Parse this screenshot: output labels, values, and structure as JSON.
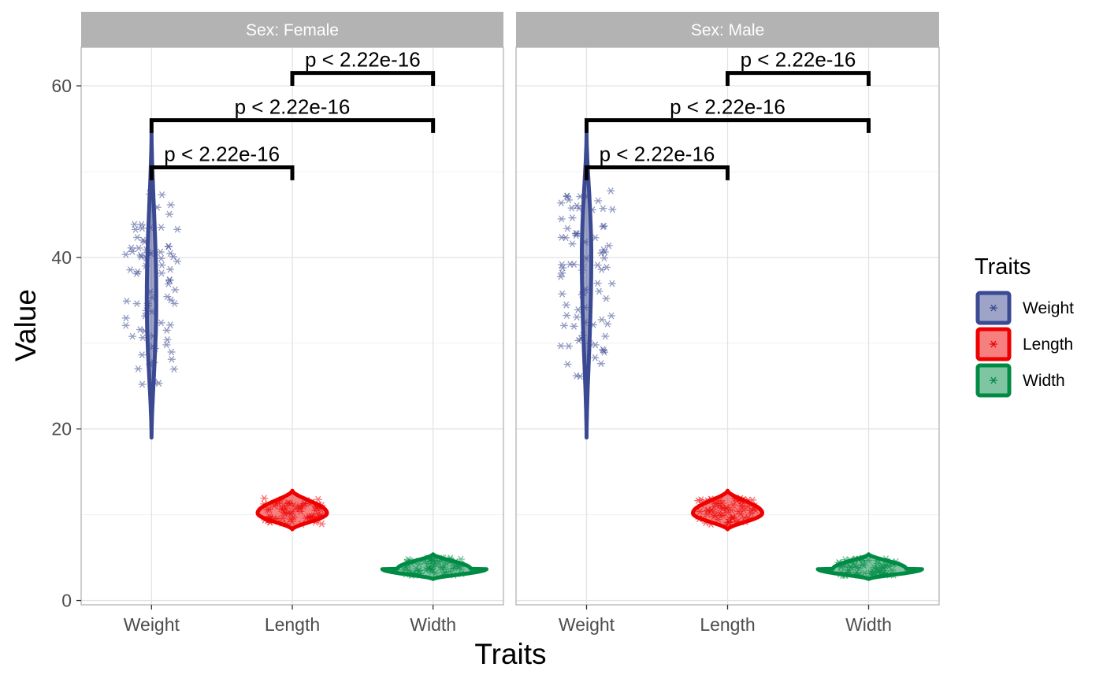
{
  "chart_data": {
    "type": "violin",
    "title": "",
    "xlabel": "Traits",
    "ylabel": "Value",
    "categories": [
      "Weight",
      "Length",
      "Width"
    ],
    "ylim": [
      -0.5,
      64.5
    ],
    "yticks": [
      0,
      20,
      40,
      60
    ],
    "grid": true,
    "legend": {
      "title": "Traits",
      "position": "right",
      "entries": [
        {
          "name": "Weight",
          "color": "#3B4992"
        },
        {
          "name": "Length",
          "color": "#EE0000"
        },
        {
          "name": "Width",
          "color": "#008B45"
        }
      ]
    },
    "panels": [
      {
        "strip": "Sex: Female",
        "violins": [
          {
            "category": "Weight",
            "min": 19,
            "max": 54.5,
            "median": 35,
            "range": [
              25,
              48
            ]
          },
          {
            "category": "Length",
            "min": 8.3,
            "max": 12.8,
            "median": 10.2,
            "range": [
              8.8,
              12.0
            ]
          },
          {
            "category": "Width",
            "min": 2.5,
            "max": 5.4,
            "median": 3.7,
            "range": [
              2.9,
              5.0
            ]
          }
        ],
        "comparisons": [
          {
            "from": "Length",
            "to": "Width",
            "y": 61.5,
            "label": "p < 2.22e-16"
          },
          {
            "from": "Weight",
            "to": "Width",
            "y": 56,
            "label": "p < 2.22e-16"
          },
          {
            "from": "Weight",
            "to": "Length",
            "y": 50.5,
            "label": "p < 2.22e-16"
          }
        ]
      },
      {
        "strip": "Sex: Male",
        "violins": [
          {
            "category": "Weight",
            "min": 19,
            "max": 54.5,
            "median": 40,
            "range": [
              26,
              48
            ]
          },
          {
            "category": "Length",
            "min": 8.3,
            "max": 12.8,
            "median": 10.2,
            "range": [
              8.8,
              12.0
            ]
          },
          {
            "category": "Width",
            "min": 2.5,
            "max": 5.4,
            "median": 3.7,
            "range": [
              2.9,
              5.0
            ]
          }
        ],
        "comparisons": [
          {
            "from": "Length",
            "to": "Width",
            "y": 61.5,
            "label": "p < 2.22e-16"
          },
          {
            "from": "Weight",
            "to": "Width",
            "y": 56,
            "label": "p < 2.22e-16"
          },
          {
            "from": "Weight",
            "to": "Length",
            "y": 50.5,
            "label": "p < 2.22e-16"
          }
        ]
      }
    ]
  }
}
